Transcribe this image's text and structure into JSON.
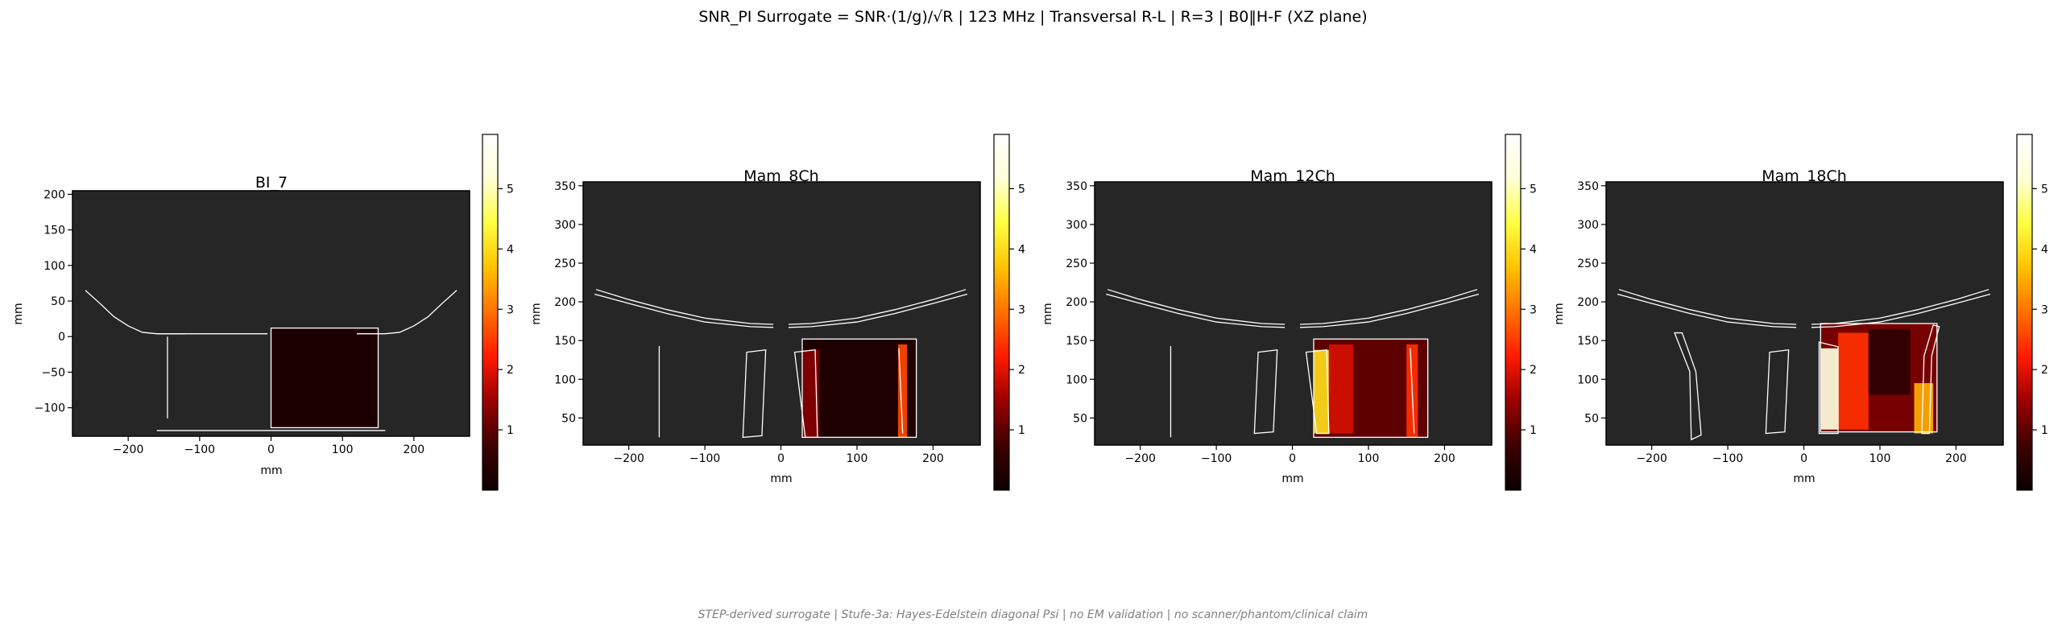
{
  "suptitle": "SNR_PI Surrogate = SNR·(1/g)/√R | 123 MHz | Transversal R-L | R=3 | B0‖H-F (XZ plane)",
  "footer": "STEP-derived surrogate | Stufe-3a: Hayes-Edelstein diagonal Psi | no EM validation | no scanner/phantom/clinical claim",
  "colors": {
    "background": "#262626",
    "outline": "#ffffff",
    "colormap": "hot",
    "colormap_stops": [
      "#0b0000",
      "#3d0000",
      "#9a0000",
      "#ff1a00",
      "#ff7000",
      "#ffc200",
      "#ffff40",
      "#ffffd8",
      "#ffffff"
    ]
  },
  "chart_data": [
    {
      "type": "heatmap",
      "title": "BI_7",
      "xlabel": "mm",
      "ylabel": "mm",
      "xlim": [
        -278,
        278
      ],
      "ylim": [
        -140,
        205
      ],
      "xticks": [
        -200,
        -100,
        0,
        100,
        200
      ],
      "yticks": [
        -100,
        -50,
        0,
        50,
        100,
        150,
        200
      ],
      "colorbar": {
        "min": 0,
        "max": 5.9,
        "ticks": [
          1,
          2,
          3,
          4,
          5
        ]
      },
      "field": {
        "x": [
          0,
          150
        ],
        "y": [
          -128,
          12
        ],
        "level": 0.25,
        "hotspots": []
      },
      "outlines": {
        "polylines": [
          [
            [
              -260,
              65
            ],
            [
              -240,
              47
            ],
            [
              -220,
              28
            ],
            [
              -200,
              15
            ],
            [
              -180,
              6
            ],
            [
              -160,
              4
            ],
            [
              -120,
              4
            ]
          ],
          [
            [
              260,
              65
            ],
            [
              240,
              47
            ],
            [
              220,
              28
            ],
            [
              200,
              15
            ],
            [
              180,
              6
            ],
            [
              160,
              4
            ],
            [
              120,
              4
            ]
          ],
          [
            [
              -160,
              4
            ],
            [
              -5,
              4
            ]
          ],
          [
            [
              -145,
              0
            ],
            [
              -145,
              -115
            ]
          ],
          [
            [
              -160,
              -132
            ],
            [
              160,
              -132
            ]
          ]
        ],
        "rects": [
          [
            0,
            -128,
            150,
            12
          ]
        ]
      }
    },
    {
      "type": "heatmap",
      "title": "Mam_8Ch",
      "xlabel": "mm",
      "ylabel": "mm",
      "xlim": [
        -260,
        262
      ],
      "ylim": [
        15,
        355
      ],
      "xticks": [
        -200,
        -100,
        0,
        100,
        200
      ],
      "yticks": [
        50,
        100,
        150,
        200,
        250,
        300,
        350
      ],
      "colorbar": {
        "min": 0,
        "max": 5.9,
        "ticks": [
          1,
          2,
          3,
          4,
          5
        ]
      },
      "field": {
        "x": [
          28,
          178
        ],
        "y": [
          25,
          152
        ],
        "level": 0.3,
        "hotspots": [
          {
            "x": [
              28,
              50
            ],
            "y": [
              25,
              138
            ],
            "level": 1.3
          },
          {
            "x": [
              154,
              166
            ],
            "y": [
              25,
              145
            ],
            "level": 2.6
          }
        ]
      },
      "outlines": {
        "polylines": [
          [
            [
              -245,
              210
            ],
            [
              -200,
              198
            ],
            [
              -150,
              185
            ],
            [
              -100,
              174
            ],
            [
              -40,
              168
            ],
            [
              -10,
              167
            ]
          ],
          [
            [
              -243,
              216
            ],
            [
              -200,
              203
            ],
            [
              -150,
              190
            ],
            [
              -100,
              179
            ],
            [
              -40,
              172
            ],
            [
              -10,
              171
            ]
          ],
          [
            [
              245,
              210
            ],
            [
              200,
              198
            ],
            [
              150,
              185
            ],
            [
              100,
              174
            ],
            [
              40,
              168
            ],
            [
              10,
              167
            ]
          ],
          [
            [
              243,
              216
            ],
            [
              200,
              203
            ],
            [
              150,
              190
            ],
            [
              100,
              179
            ],
            [
              40,
              172
            ],
            [
              10,
              171
            ]
          ],
          [
            [
              -160,
              143
            ],
            [
              -160,
              25
            ]
          ],
          [
            [
              155,
              140
            ],
            [
              160,
              30
            ]
          ]
        ],
        "polygons": [
          [
            [
              -45,
              135
            ],
            [
              -20,
              138
            ],
            [
              -25,
              27
            ],
            [
              -50,
              25
            ]
          ],
          [
            [
              18,
              135
            ],
            [
              45,
              138
            ],
            [
              48,
              25
            ],
            [
              32,
              25
            ]
          ]
        ],
        "rects": [
          [
            28,
            25,
            178,
            152
          ]
        ]
      }
    },
    {
      "type": "heatmap",
      "title": "Mam_12Ch",
      "xlabel": "mm",
      "ylabel": "mm",
      "xlim": [
        -260,
        262
      ],
      "ylim": [
        15,
        355
      ],
      "xticks": [
        -200,
        -100,
        0,
        100,
        200
      ],
      "yticks": [
        50,
        100,
        150,
        200,
        250,
        300,
        350
      ],
      "colorbar": {
        "min": 0,
        "max": 5.9,
        "ticks": [
          1,
          2,
          3,
          4,
          5
        ]
      },
      "field": {
        "x": [
          28,
          178
        ],
        "y": [
          25,
          152
        ],
        "level": 1.0,
        "hotspots": [
          {
            "x": [
              28,
              48
            ],
            "y": [
              30,
              138
            ],
            "level": 4.0
          },
          {
            "x": [
              48,
              80
            ],
            "y": [
              30,
              145
            ],
            "level": 1.9
          },
          {
            "x": [
              150,
              165
            ],
            "y": [
              25,
              145
            ],
            "level": 2.4
          }
        ]
      },
      "outlines": {
        "polylines": [
          [
            [
              -245,
              210
            ],
            [
              -200,
              198
            ],
            [
              -150,
              185
            ],
            [
              -100,
              174
            ],
            [
              -40,
              168
            ],
            [
              -10,
              167
            ]
          ],
          [
            [
              -243,
              216
            ],
            [
              -200,
              203
            ],
            [
              -150,
              190
            ],
            [
              -100,
              179
            ],
            [
              -40,
              172
            ],
            [
              -10,
              171
            ]
          ],
          [
            [
              245,
              210
            ],
            [
              200,
              198
            ],
            [
              150,
              185
            ],
            [
              100,
              174
            ],
            [
              40,
              168
            ],
            [
              10,
              167
            ]
          ],
          [
            [
              243,
              216
            ],
            [
              200,
              203
            ],
            [
              150,
              190
            ],
            [
              100,
              179
            ],
            [
              40,
              172
            ],
            [
              10,
              171
            ]
          ],
          [
            [
              -160,
              143
            ],
            [
              -160,
              25
            ]
          ],
          [
            [
              155,
              140
            ],
            [
              160,
              30
            ]
          ]
        ],
        "polygons": [
          [
            [
              -45,
              135
            ],
            [
              -20,
              138
            ],
            [
              -25,
              32
            ],
            [
              -50,
              30
            ]
          ],
          [
            [
              18,
              135
            ],
            [
              45,
              138
            ],
            [
              48,
              30
            ],
            [
              32,
              30
            ]
          ]
        ],
        "rects": [
          [
            28,
            25,
            178,
            152
          ]
        ]
      }
    },
    {
      "type": "heatmap",
      "title": "Mam_18Ch",
      "xlabel": "mm",
      "ylabel": "mm",
      "xlim": [
        -260,
        262
      ],
      "ylim": [
        15,
        355
      ],
      "xticks": [
        -200,
        -100,
        0,
        100,
        200
      ],
      "yticks": [
        50,
        100,
        150,
        200,
        250,
        300,
        350
      ],
      "colorbar": {
        "min": 0,
        "max": 5.9,
        "ticks": [
          1,
          2,
          3,
          4,
          5
        ]
      },
      "field": {
        "x": [
          22,
          175
        ],
        "y": [
          32,
          172
        ],
        "level": 1.2,
        "hotspots": [
          {
            "x": [
              22,
              45
            ],
            "y": [
              35,
              140
            ],
            "level": 5.3
          },
          {
            "x": [
              45,
              85
            ],
            "y": [
              35,
              160
            ],
            "level": 2.4
          },
          {
            "x": [
              85,
              140
            ],
            "y": [
              80,
              165
            ],
            "level": 0.5
          },
          {
            "x": [
              145,
              170
            ],
            "y": [
              30,
              95
            ],
            "level": 3.5
          }
        ]
      },
      "outlines": {
        "polylines": [
          [
            [
              -245,
              210
            ],
            [
              -200,
              198
            ],
            [
              -150,
              185
            ],
            [
              -100,
              174
            ],
            [
              -40,
              168
            ],
            [
              -10,
              167
            ]
          ],
          [
            [
              -243,
              216
            ],
            [
              -200,
              203
            ],
            [
              -150,
              190
            ],
            [
              -100,
              179
            ],
            [
              -40,
              172
            ],
            [
              -10,
              171
            ]
          ],
          [
            [
              245,
              210
            ],
            [
              200,
              198
            ],
            [
              150,
              185
            ],
            [
              100,
              174
            ],
            [
              40,
              168
            ],
            [
              10,
              167
            ]
          ],
          [
            [
              243,
              216
            ],
            [
              200,
              203
            ],
            [
              150,
              190
            ],
            [
              100,
              179
            ],
            [
              40,
              172
            ],
            [
              10,
              171
            ]
          ]
        ],
        "polygons": [
          [
            [
              -170,
              160
            ],
            [
              -160,
              160
            ],
            [
              -142,
              110
            ],
            [
              -135,
              28
            ],
            [
              -148,
              22
            ],
            [
              -150,
              110
            ],
            [
              -168,
              155
            ]
          ],
          [
            [
              -45,
              135
            ],
            [
              -20,
              138
            ],
            [
              -25,
              32
            ],
            [
              -50,
              30
            ]
          ],
          [
            [
              20,
              148
            ],
            [
              45,
              142
            ],
            [
              45,
              30
            ],
            [
              20,
              30
            ]
          ],
          [
            [
              155,
              30
            ],
            [
              165,
              30
            ],
            [
              168,
              130
            ],
            [
              178,
              168
            ],
            [
              170,
              170
            ],
            [
              158,
              130
            ]
          ]
        ],
        "rects": [
          [
            22,
            32,
            175,
            172
          ]
        ]
      }
    }
  ]
}
